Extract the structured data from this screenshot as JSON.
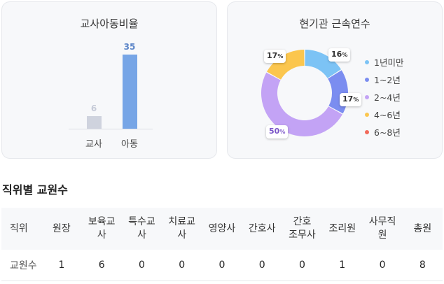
{
  "ratio_card": {
    "title": "교사아동비율",
    "chart_data": {
      "type": "bar",
      "categories": [
        "교사",
        "아동"
      ],
      "values": [
        6,
        35
      ],
      "colors": [
        "#cfd3de",
        "#76a5e6"
      ],
      "value_label_colors": [
        "#c6cbd8",
        "#5d86c8"
      ],
      "ylim": [
        0,
        35
      ]
    }
  },
  "tenure_card": {
    "title": "현기관 근속연수",
    "chart_data": {
      "type": "pie",
      "categories": [
        "1년미만",
        "1~2년",
        "2~4년",
        "4~6년",
        "6~8년"
      ],
      "values": [
        16,
        17,
        50,
        17,
        0
      ],
      "colors": [
        "#7cc3f5",
        "#7b8df0",
        "#c3a3f5",
        "#fbc64e",
        "#f26a5a"
      ],
      "slice_labels": [
        {
          "value": "16",
          "unit": "%"
        },
        {
          "value": "17",
          "unit": "%"
        },
        {
          "value": "50",
          "unit": "%"
        },
        {
          "value": "17",
          "unit": "%"
        }
      ]
    }
  },
  "staff_section": {
    "title": "직위별 교원수",
    "headers": [
      "직위",
      "원장",
      "보육교\n사",
      "특수교\n사",
      "치료교\n사",
      "영양사",
      "간호사",
      "간호\n조무사",
      "조리원",
      "사무직\n원",
      "총원"
    ],
    "rows": [
      [
        "교원수",
        "1",
        "6",
        "0",
        "0",
        "0",
        "0",
        "0",
        "1",
        "0",
        "8"
      ]
    ]
  }
}
